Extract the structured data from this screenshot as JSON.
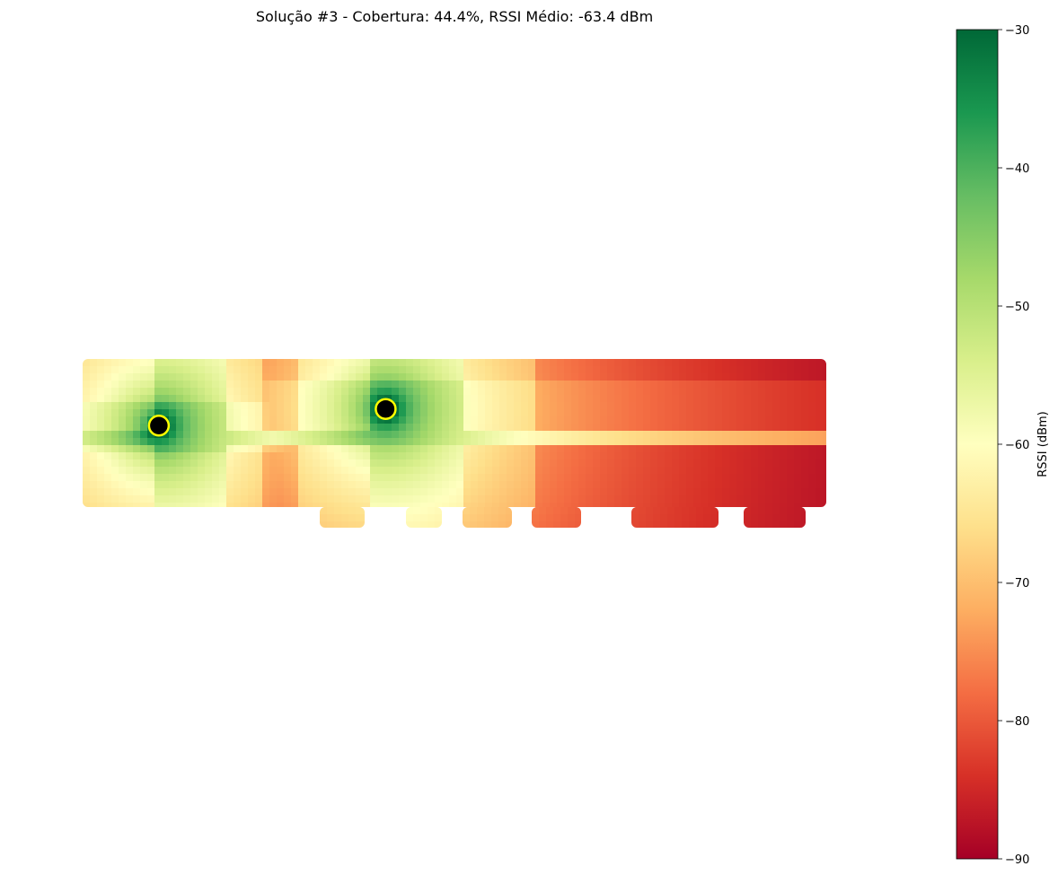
{
  "chart_data": {
    "type": "heatmap",
    "title": "Solução #3 - Cobertura: 44.4%, RSSI Médio: -63.4 dBm",
    "colorbar": {
      "label": "RSSI (dBm)",
      "range": [
        -90,
        -30
      ],
      "ticks": [
        -30,
        -40,
        -50,
        -60,
        -70,
        -80,
        -90
      ],
      "tick_labels": [
        "−30",
        "−40",
        "−50",
        "−60",
        "−70",
        "−80",
        "−90"
      ],
      "colormap": "RdYlGn",
      "colors": [
        "#a50026",
        "#d73027",
        "#f46d43",
        "#fdae61",
        "#fee08b",
        "#ffffbf",
        "#d9ef8b",
        "#a6d96a",
        "#66bd63",
        "#1a9850",
        "#006837"
      ]
    },
    "access_points": [
      {
        "x": 4.1,
        "y": 3.6
      },
      {
        "x": 16.3,
        "y": 2.7
      }
    ],
    "marker_fill": "#000000",
    "marker_edge": "#ffff00",
    "coverage_percent": 44.4,
    "mean_rssi_dbm": -63.4,
    "extent": {
      "x": [
        0,
        40
      ],
      "y": [
        0,
        8
      ]
    }
  }
}
